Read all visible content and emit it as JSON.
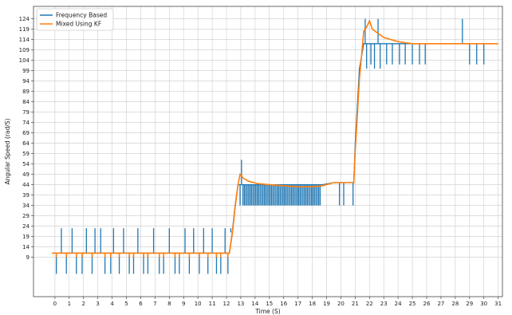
{
  "chart_data": {
    "type": "line",
    "xlabel": "Time (S)",
    "ylabel": "Angular Speed (rad/S)",
    "xlim": [
      -1.5,
      31.3
    ],
    "ylim": [
      -10,
      130
    ],
    "xticks": [
      0,
      1,
      2,
      3,
      4,
      5,
      6,
      7,
      8,
      9,
      10,
      11,
      12,
      13,
      14,
      15,
      16,
      17,
      18,
      19,
      20,
      21,
      22,
      23,
      24,
      25,
      26,
      27,
      28,
      29,
      30,
      31
    ],
    "yticks": [
      9,
      14,
      19,
      24,
      29,
      34,
      39,
      44,
      49,
      54,
      59,
      64,
      69,
      74,
      79,
      84,
      89,
      94,
      99,
      104,
      109,
      114,
      119,
      124
    ],
    "grid": true,
    "legend_position": "top-left",
    "series": [
      {
        "name": "Frequency Based",
        "color": "#1f77b4",
        "baseline": [
          [
            -0.2,
            11
          ],
          [
            12.2,
            11
          ],
          [
            12.4,
            21
          ],
          [
            12.6,
            34
          ],
          [
            12.8,
            44
          ],
          [
            18.7,
            44
          ],
          [
            19.5,
            45
          ],
          [
            20.9,
            45
          ],
          [
            21.0,
            64
          ],
          [
            21.3,
            100
          ],
          [
            21.6,
            112
          ],
          [
            31,
            112
          ]
        ],
        "spikes": [
          [
            0.1,
            11,
            1
          ],
          [
            0.45,
            11,
            23
          ],
          [
            0.8,
            11,
            1
          ],
          [
            1.2,
            11,
            23
          ],
          [
            1.5,
            11,
            1
          ],
          [
            1.9,
            11,
            1
          ],
          [
            2.2,
            11,
            23
          ],
          [
            2.6,
            11,
            1
          ],
          [
            2.8,
            11,
            23
          ],
          [
            3.2,
            11,
            23
          ],
          [
            3.5,
            11,
            1
          ],
          [
            3.9,
            11,
            1
          ],
          [
            4.1,
            11,
            23
          ],
          [
            4.5,
            11,
            1
          ],
          [
            4.8,
            11,
            23
          ],
          [
            5.2,
            11,
            1
          ],
          [
            5.5,
            11,
            1
          ],
          [
            5.8,
            11,
            23
          ],
          [
            6.2,
            11,
            1
          ],
          [
            6.5,
            11,
            1
          ],
          [
            6.9,
            11,
            23
          ],
          [
            7.3,
            11,
            1
          ],
          [
            7.6,
            11,
            1
          ],
          [
            8.0,
            11,
            23
          ],
          [
            8.4,
            11,
            1
          ],
          [
            8.7,
            11,
            1
          ],
          [
            9.1,
            11,
            23
          ],
          [
            9.4,
            11,
            1
          ],
          [
            9.7,
            11,
            23
          ],
          [
            10.1,
            11,
            1
          ],
          [
            10.4,
            11,
            23
          ],
          [
            10.7,
            11,
            1
          ],
          [
            11.0,
            11,
            23
          ],
          [
            11.3,
            11,
            1
          ],
          [
            11.6,
            11,
            1
          ],
          [
            11.9,
            11,
            23
          ],
          [
            12.1,
            11,
            1
          ],
          [
            12.3,
            21,
            23
          ],
          [
            12.95,
            44,
            34
          ],
          [
            13.05,
            44,
            56
          ],
          [
            13.15,
            44,
            34
          ],
          [
            13.25,
            44,
            34
          ],
          [
            13.35,
            44,
            34
          ],
          [
            13.45,
            44,
            34
          ],
          [
            13.55,
            44,
            34
          ],
          [
            13.65,
            44,
            34
          ],
          [
            13.75,
            44,
            34
          ],
          [
            13.85,
            44,
            34
          ],
          [
            13.95,
            44,
            34
          ],
          [
            14.05,
            44,
            34
          ],
          [
            14.15,
            44,
            34
          ],
          [
            14.25,
            44,
            34
          ],
          [
            14.35,
            44,
            34
          ],
          [
            14.45,
            44,
            34
          ],
          [
            14.55,
            44,
            34
          ],
          [
            14.65,
            44,
            34
          ],
          [
            14.75,
            44,
            34
          ],
          [
            14.85,
            44,
            34
          ],
          [
            14.95,
            44,
            34
          ],
          [
            15.05,
            44,
            34
          ],
          [
            15.15,
            44,
            34
          ],
          [
            15.25,
            44,
            34
          ],
          [
            15.35,
            44,
            34
          ],
          [
            15.45,
            44,
            34
          ],
          [
            15.55,
            44,
            34
          ],
          [
            15.65,
            44,
            34
          ],
          [
            15.75,
            44,
            34
          ],
          [
            15.85,
            44,
            34
          ],
          [
            15.95,
            44,
            34
          ],
          [
            16.05,
            44,
            34
          ],
          [
            16.15,
            44,
            34
          ],
          [
            16.25,
            44,
            34
          ],
          [
            16.35,
            44,
            34
          ],
          [
            16.45,
            44,
            34
          ],
          [
            16.55,
            44,
            34
          ],
          [
            16.65,
            44,
            34
          ],
          [
            16.75,
            44,
            34
          ],
          [
            16.85,
            44,
            34
          ],
          [
            16.95,
            44,
            34
          ],
          [
            17.05,
            44,
            34
          ],
          [
            17.15,
            44,
            34
          ],
          [
            17.25,
            44,
            34
          ],
          [
            17.35,
            44,
            34
          ],
          [
            17.45,
            44,
            34
          ],
          [
            17.55,
            44,
            34
          ],
          [
            17.65,
            44,
            34
          ],
          [
            17.75,
            44,
            34
          ],
          [
            17.85,
            44,
            34
          ],
          [
            17.95,
            44,
            34
          ],
          [
            18.05,
            44,
            34
          ],
          [
            18.15,
            44,
            34
          ],
          [
            18.25,
            44,
            34
          ],
          [
            18.35,
            44,
            34
          ],
          [
            18.45,
            44,
            34
          ],
          [
            18.55,
            44,
            34
          ],
          [
            19.9,
            45,
            34
          ],
          [
            20.2,
            45,
            34
          ],
          [
            20.85,
            45,
            34
          ],
          [
            21.7,
            112,
            124
          ],
          [
            21.8,
            112,
            100
          ],
          [
            22.1,
            112,
            102
          ],
          [
            22.35,
            112,
            100
          ],
          [
            22.6,
            112,
            124
          ],
          [
            22.75,
            112,
            100
          ],
          [
            23.2,
            112,
            102
          ],
          [
            23.6,
            112,
            102
          ],
          [
            24.1,
            112,
            102
          ],
          [
            24.5,
            112,
            102
          ],
          [
            25.0,
            112,
            102
          ],
          [
            25.5,
            112,
            102
          ],
          [
            25.9,
            112,
            102
          ],
          [
            28.5,
            112,
            124
          ],
          [
            29.0,
            112,
            102
          ],
          [
            29.5,
            112,
            102
          ],
          [
            30.0,
            112,
            102
          ]
        ]
      },
      {
        "name": "Mixed Using KF",
        "color": "#ff7f0e",
        "points": [
          [
            -0.2,
            11
          ],
          [
            12.2,
            11
          ],
          [
            12.4,
            20
          ],
          [
            12.6,
            33
          ],
          [
            12.8,
            44
          ],
          [
            12.95,
            49
          ],
          [
            13.2,
            47
          ],
          [
            13.6,
            45.5
          ],
          [
            14.2,
            44.5
          ],
          [
            15.0,
            44
          ],
          [
            16.0,
            43.5
          ],
          [
            17.0,
            43
          ],
          [
            18.0,
            43
          ],
          [
            18.7,
            43.5
          ],
          [
            19.5,
            45
          ],
          [
            20.9,
            45
          ],
          [
            21.0,
            60
          ],
          [
            21.3,
            95
          ],
          [
            21.6,
            118
          ],
          [
            21.8,
            120
          ],
          [
            22.0,
            123
          ],
          [
            22.2,
            119
          ],
          [
            22.6,
            117
          ],
          [
            23.0,
            115
          ],
          [
            24.0,
            113
          ],
          [
            25.0,
            112
          ],
          [
            31,
            112
          ]
        ],
        "dips": [
          [
            0.1,
            9
          ],
          [
            0.8,
            9
          ],
          [
            1.5,
            9
          ],
          [
            1.9,
            9
          ],
          [
            2.6,
            9
          ],
          [
            3.5,
            9
          ],
          [
            3.9,
            9
          ],
          [
            4.5,
            9
          ],
          [
            5.2,
            9
          ],
          [
            5.5,
            9
          ],
          [
            6.2,
            9
          ],
          [
            6.5,
            9
          ],
          [
            7.3,
            9
          ],
          [
            7.6,
            9
          ],
          [
            8.4,
            9
          ],
          [
            8.7,
            9
          ],
          [
            9.4,
            9
          ],
          [
            10.1,
            9
          ],
          [
            10.7,
            9
          ],
          [
            11.3,
            9
          ],
          [
            11.6,
            9
          ],
          [
            12.1,
            9
          ]
        ]
      }
    ]
  }
}
